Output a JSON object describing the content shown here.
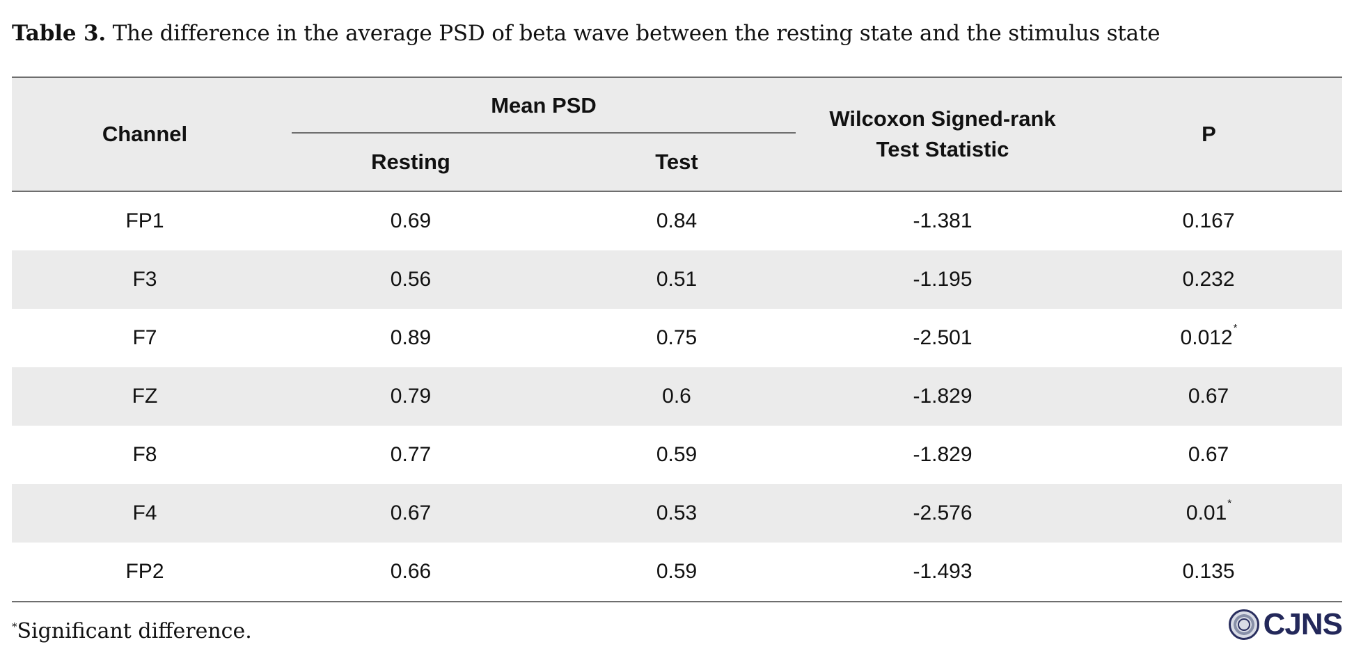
{
  "caption": {
    "label": "Table 3.",
    "text": " The difference in the average PSD of beta wave between the resting state and the stimulus state"
  },
  "table": {
    "headers": {
      "channel": "Channel",
      "mean_psd": "Mean PSD",
      "resting": "Resting",
      "test": "Test",
      "wilcoxon_line1": "Wilcoxon Signed-rank",
      "wilcoxon_line2": "Test Statistic",
      "p": "P"
    },
    "rows": [
      {
        "channel": "FP1",
        "resting": "0.69",
        "test": "0.84",
        "statistic": "-1.381",
        "p": "0.167",
        "mark": ""
      },
      {
        "channel": "F3",
        "resting": "0.56",
        "test": "0.51",
        "statistic": "-1.195",
        "p": "0.232",
        "mark": ""
      },
      {
        "channel": "F7",
        "resting": "0.89",
        "test": "0.75",
        "statistic": "-2.501",
        "p": "0.012",
        "mark": "*"
      },
      {
        "channel": "FZ",
        "resting": "0.79",
        "test": "0.6",
        "statistic": "-1.829",
        "p": "0.67",
        "mark": ""
      },
      {
        "channel": "F8",
        "resting": "0.77",
        "test": "0.59",
        "statistic": "-1.829",
        "p": "0.67",
        "mark": ""
      },
      {
        "channel": "F4",
        "resting": "0.67",
        "test": "0.53",
        "statistic": "-2.576",
        "p": "0.01",
        "mark": "*"
      },
      {
        "channel": "FP2",
        "resting": "0.66",
        "test": "0.59",
        "statistic": "-1.493",
        "p": "0.135",
        "mark": ""
      }
    ]
  },
  "footnote": {
    "mark": "*",
    "text": "Significant difference."
  },
  "logo": {
    "text": "CJNS",
    "icon": "journal-seal-icon",
    "color": "#23285a"
  }
}
